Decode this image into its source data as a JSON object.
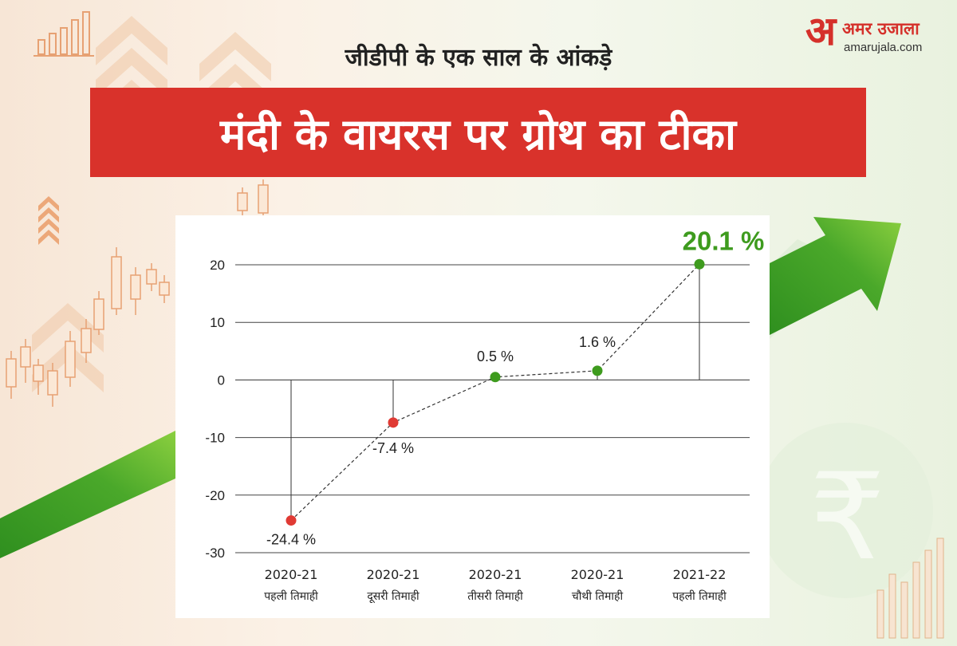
{
  "brand": {
    "logo_mark": "अ",
    "logo_name_hi": "अमर उजाला",
    "logo_site": "amarujala.com"
  },
  "subtitle": "जीडीपी के एक साल के आंकड़े",
  "headline": "मंदी के वायरस पर ग्रोथ का टीका",
  "colors": {
    "headline_bg": "#d9322b",
    "negative_point": "#e03a34",
    "positive_point": "#3e9b1e",
    "highlight_label": "#3e9b1e"
  },
  "chart_data": {
    "type": "line",
    "title": "",
    "xlabel": "",
    "ylabel": "",
    "ylim": [
      -30,
      20
    ],
    "yticks": [
      20,
      10,
      0,
      -10,
      -20,
      -30
    ],
    "grid": true,
    "categories": [
      [
        "2020-21",
        "पहली तिमाही"
      ],
      [
        "2020-21",
        "दूसरी तिमाही"
      ],
      [
        "2020-21",
        "तीसरी तिमाही"
      ],
      [
        "2020-21",
        "चौथी तिमाही"
      ],
      [
        "2021-22",
        "पहली तिमाही"
      ]
    ],
    "values": [
      -24.4,
      -7.4,
      0.5,
      1.6,
      20.1
    ],
    "data_labels": [
      "-24.4 %",
      "-7.4 %",
      "0.5 %",
      "1.6 %",
      "20.1 %"
    ]
  }
}
